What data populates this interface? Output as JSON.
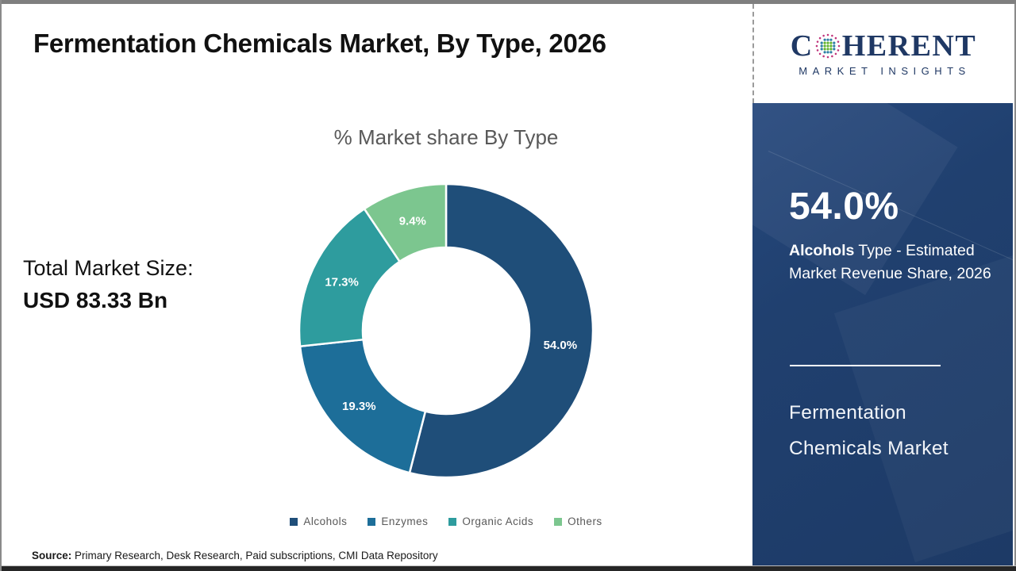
{
  "header": {
    "title": "Fermentation Chemicals Market, By Type, 2026"
  },
  "logo": {
    "word_start": "C",
    "word_end": "HERENT",
    "subtitle": "MARKET INSIGHTS",
    "text_color": "#1f3864",
    "globe_colors": {
      "outer_ring": "#c0357c",
      "mid_dots": "#2f7fa6",
      "center_dots": "#62b32e"
    }
  },
  "chart_data": {
    "type": "pie",
    "donut": true,
    "title": "% Market share By Type",
    "categories": [
      "Alcohols",
      "Enzymes",
      "Organic Acids",
      "Others"
    ],
    "values": [
      54.0,
      19.3,
      17.3,
      9.4
    ],
    "labels": [
      "54.0%",
      "19.3%",
      "17.3%",
      "9.4%"
    ],
    "colors": [
      "#1F4E79",
      "#1D6E99",
      "#2E9C9E",
      "#7CC68F"
    ],
    "start_angle_deg": 0,
    "direction": "clockwise",
    "outer_radius": 185,
    "inner_radius": 105,
    "label_radius": 145,
    "legend_position": "bottom",
    "slice_separator_color": "#ffffff"
  },
  "left_panel": {
    "total_label": "Total Market Size:",
    "total_value": "USD 83.33 Bn"
  },
  "sidebar": {
    "stat_value": "54.0%",
    "stat_bold": "Alcohols",
    "stat_rest": " Type - Estimated Market Revenue Share, 2026",
    "product_name": "Fermentation Chemicals Market",
    "background_color": "#1F3E6E"
  },
  "footer": {
    "source_label": "Source:",
    "source_text": " Primary Research, Desk Research, Paid subscriptions, CMI Data Repository"
  }
}
